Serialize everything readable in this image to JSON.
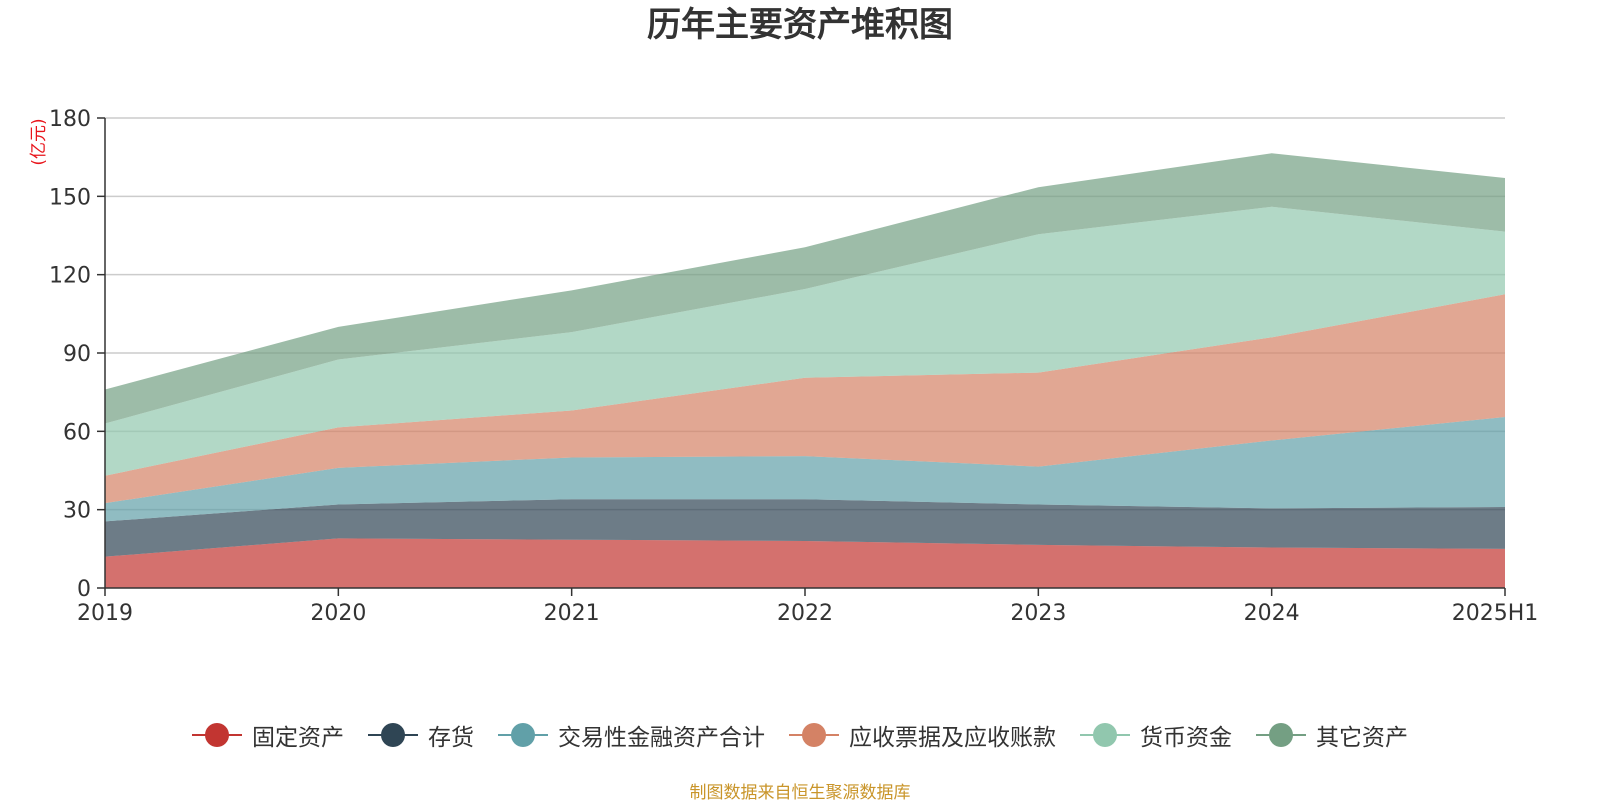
{
  "chart_data": {
    "type": "area",
    "stacked": true,
    "title": "历年主要资产堆积图",
    "unit_label": "(亿元)",
    "categories": [
      "2019",
      "2020",
      "2021",
      "2022",
      "2023",
      "2024",
      "2025H1"
    ],
    "y_ticks": [
      "0",
      "30",
      "60",
      "90",
      "120",
      "150",
      "180"
    ],
    "ylim": [
      0,
      180
    ],
    "grid": true,
    "legend_position": "bottom",
    "series": [
      {
        "name": "固定资产",
        "color": "#c23531",
        "values": [
          12,
          19,
          18.5,
          18,
          16.5,
          15.5,
          15
        ]
      },
      {
        "name": "存货",
        "color": "#2f4554",
        "values": [
          13.5,
          13,
          15.5,
          16,
          15.5,
          15,
          16
        ]
      },
      {
        "name": "交易性金融资产合计",
        "color": "#61a0a8",
        "values": [
          7,
          14,
          16,
          16.5,
          14.5,
          26,
          34.5
        ]
      },
      {
        "name": "应收票据及应收账款",
        "color": "#d48265",
        "values": [
          10.5,
          15.5,
          18,
          30,
          36,
          39.5,
          47
        ]
      },
      {
        "name": "货币资金",
        "color": "#91c7ae",
        "values": [
          20,
          26,
          30,
          34,
          53,
          50,
          24
        ]
      },
      {
        "name": "其它资产",
        "color": "#749f83",
        "values": [
          13,
          12.5,
          16,
          16,
          18,
          20.5,
          20.5
        ]
      }
    ]
  },
  "footer": {
    "source_note": "制图数据来自恒生聚源数据库"
  }
}
